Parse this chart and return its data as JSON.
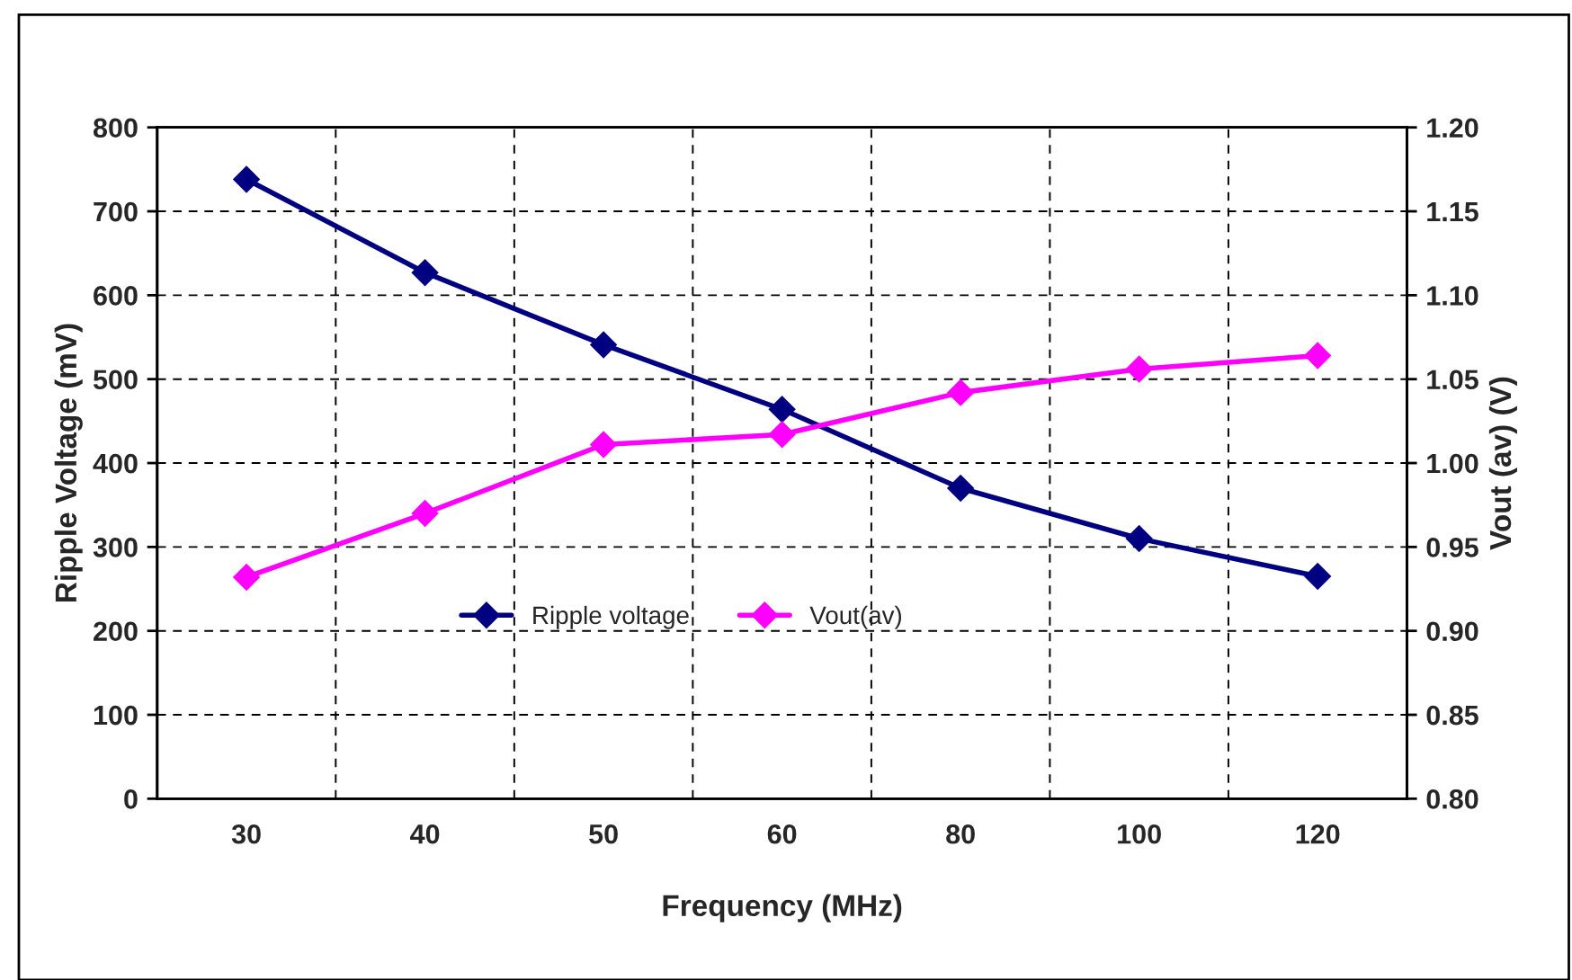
{
  "chart_data": {
    "type": "line",
    "xlabel": "Frequency (MHz)",
    "ylabel": "Ripple Voltage (mV)",
    "y2label": "Vout (av) (V)",
    "categories": [
      "30",
      "40",
      "50",
      "60",
      "80",
      "100",
      "120"
    ],
    "series": [
      {
        "name": "Ripple voltage",
        "color": "#000080",
        "values": [
          738,
          627,
          541,
          464,
          370,
          310,
          265
        ]
      },
      {
        "name": "Vout(av)",
        "color": "#ff00ff",
        "axis": "y2",
        "values": [
          0.932,
          0.97,
          1.011,
          1.017,
          1.042,
          1.056,
          1.064
        ]
      }
    ],
    "ylim": [
      0,
      800
    ],
    "yticks": [
      0,
      100,
      200,
      300,
      400,
      500,
      600,
      700,
      800
    ],
    "y2lim": [
      0.8,
      1.2
    ],
    "y2ticks": [
      {
        "value": 0.8,
        "label": "0.80"
      },
      {
        "value": 0.85,
        "label": "0.85"
      },
      {
        "value": 0.9,
        "label": "0.90"
      },
      {
        "value": 0.95,
        "label": "0.95"
      },
      {
        "value": 1.0,
        "label": "1.00"
      },
      {
        "value": 1.05,
        "label": "1.05"
      },
      {
        "value": 1.1,
        "label": "1.10"
      },
      {
        "value": 1.15,
        "label": "1.15"
      },
      {
        "value": 1.2,
        "label": "1.20"
      }
    ],
    "grid": true,
    "legend": "center",
    "marker": "diamond",
    "line_style": "solid"
  }
}
